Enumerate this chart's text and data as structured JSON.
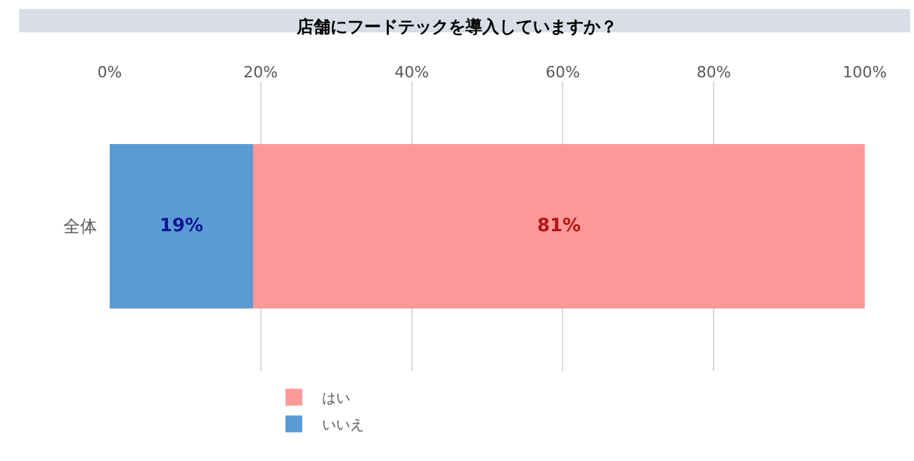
{
  "chart_data": {
    "type": "bar",
    "title": "店舗にフードテックを導入していますか？",
    "orientation": "horizontal",
    "stacked": true,
    "categories": [
      "全体"
    ],
    "series": [
      {
        "name": "いいえ",
        "color": "#5b9bd5",
        "values": [
          19
        ],
        "value_labels": [
          "19%"
        ]
      },
      {
        "name": "はい",
        "color": "#ff9999",
        "values": [
          81
        ],
        "value_labels": [
          "81%"
        ]
      }
    ],
    "xlim": [
      0,
      100
    ],
    "xticks": [
      {
        "value": 0,
        "label": "0%"
      },
      {
        "value": 20,
        "label": "20%"
      },
      {
        "value": 40,
        "label": "40%"
      },
      {
        "value": 60,
        "label": "60%"
      },
      {
        "value": 80,
        "label": "80%"
      },
      {
        "value": 100,
        "label": "100%"
      }
    ],
    "grid": "x",
    "legend": "bottom"
  }
}
